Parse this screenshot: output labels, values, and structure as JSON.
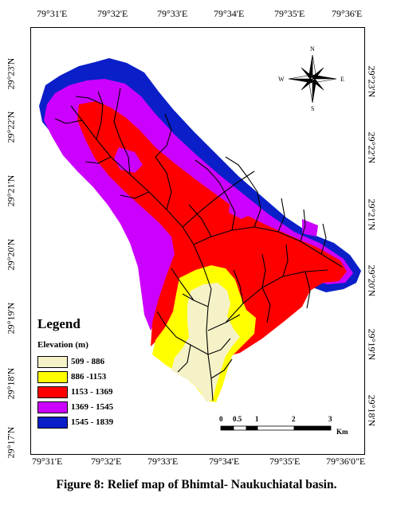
{
  "map": {
    "caption": "Figure 8: Relief map of Bhimtal- Naukuchiatal basin.",
    "longitude_labels": [
      "79°31'E",
      "79°32'E",
      "79°33'E",
      "79°34'E",
      "79°35'E",
      "79°36'E"
    ],
    "longitude_labels_bottom": [
      "79°31'E",
      "79°32'E",
      "79°33'E",
      "79°34'E",
      "79°35'E",
      "79°36'0\"E"
    ],
    "latitude_labels_left": [
      "29°23'N",
      "29°22'N",
      "29°21'N",
      "29°20'N",
      "29°19'N",
      "29°18'N",
      "29°17'N"
    ],
    "latitude_labels_right": [
      "29°23'N",
      "29°22'N",
      "29°21'N",
      "29°20'N",
      "29°19'N",
      "29°18'N"
    ]
  },
  "legend": {
    "title": "Legend",
    "subtitle": "Elevation (m)",
    "classes": [
      {
        "label": "509 - 886",
        "color": "#f5f2c8"
      },
      {
        "label": "886 -1153",
        "color": "#ffff00"
      },
      {
        "label": "1153 - 1369",
        "color": "#ff0000"
      },
      {
        "label": "1369 - 1545",
        "color": "#cc00ff"
      },
      {
        "label": "1545 - 1839",
        "color": "#0a1fc8"
      }
    ]
  },
  "scale_bar": {
    "ticks": [
      "0",
      "0.5",
      "1",
      "2",
      "3"
    ],
    "unit": "Km"
  },
  "compass": {
    "n": "N",
    "s": "S",
    "e": "E",
    "w": "W"
  },
  "colors": {
    "drainage": "#000000"
  }
}
